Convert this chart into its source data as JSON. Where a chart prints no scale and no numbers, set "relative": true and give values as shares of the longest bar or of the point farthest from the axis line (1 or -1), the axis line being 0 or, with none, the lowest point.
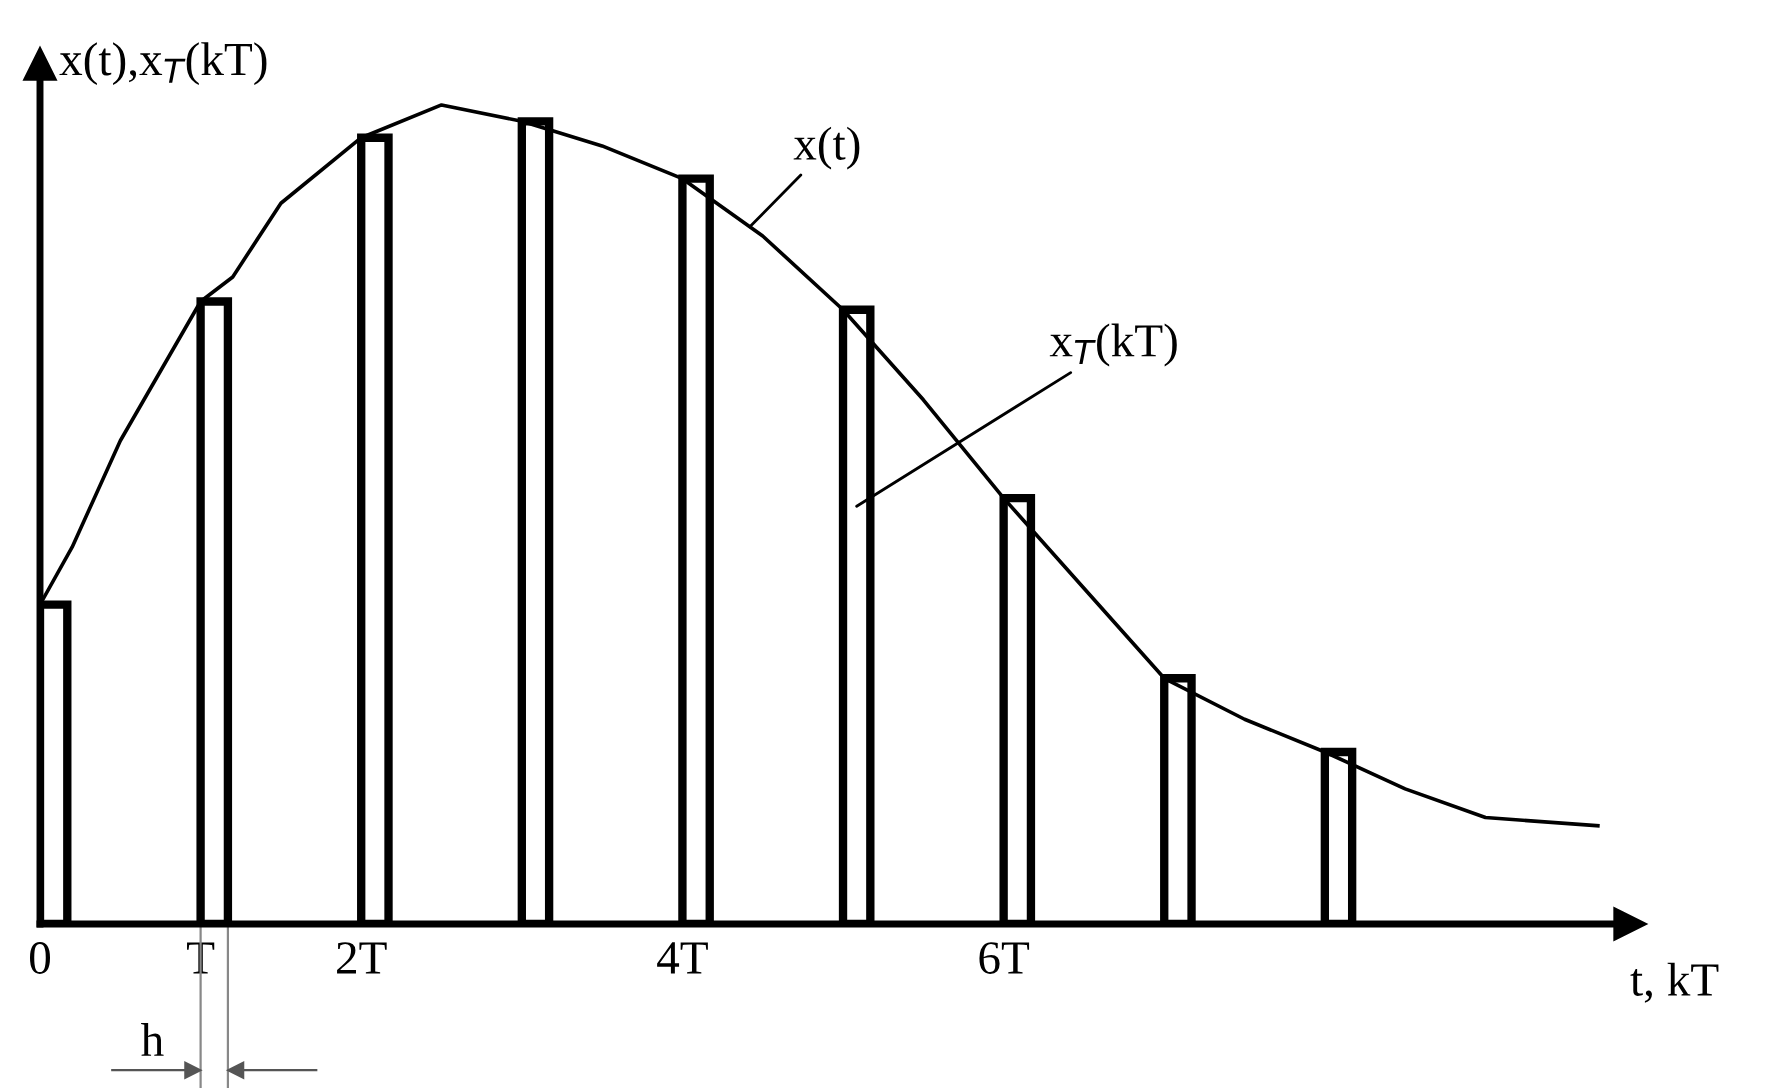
{
  "chart_data": {
    "type": "bar",
    "relative": true,
    "xlabel": "t, kT",
    "ylabel": "x(t),x$_{T}$(kT)",
    "xlim": [
      0,
      9.9
    ],
    "xticks": [
      {
        "value": 0,
        "label": "0"
      },
      {
        "value": 1,
        "label": "T"
      },
      {
        "value": 2,
        "label": "2T"
      },
      {
        "value": 4,
        "label": "4T"
      },
      {
        "value": 6,
        "label": "6T"
      }
    ],
    "series": [
      {
        "name": "x$_{T}$(kT)",
        "color": "#000000",
        "x": [
          0,
          1,
          2,
          3,
          4,
          5,
          6,
          7,
          8
        ],
        "values": [
          0.39,
          0.76,
          0.96,
          0.98,
          0.91,
          0.75,
          0.52,
          0.3,
          0.21
        ]
      },
      {
        "name": "x(t)",
        "type": "line",
        "color": "#000000",
        "x": [
          0,
          0.2,
          0.5,
          1,
          1.2,
          1.5,
          2,
          2.5,
          3,
          3.5,
          4,
          4.5,
          5,
          5.5,
          6,
          6.5,
          7,
          7.5,
          8,
          8.5,
          9,
          9.7
        ],
        "values": [
          0.39,
          0.46,
          0.59,
          0.76,
          0.79,
          0.88,
          0.96,
          1.0,
          0.98,
          0.95,
          0.91,
          0.84,
          0.75,
          0.64,
          0.52,
          0.41,
          0.3,
          0.25,
          0.21,
          0.165,
          0.13,
          0.12
        ]
      }
    ],
    "annotations": [
      "h"
    ]
  }
}
